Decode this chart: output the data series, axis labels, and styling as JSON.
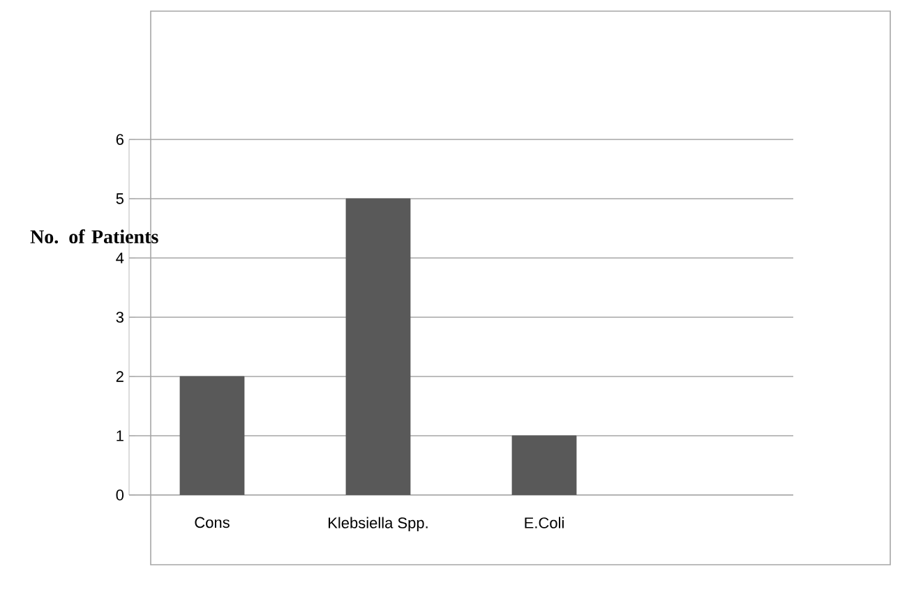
{
  "chart_data": {
    "type": "bar",
    "ylabel": "No. of Patients",
    "categories": [
      "Cons",
      "Klebsiella Spp.",
      "E.Coli",
      null
    ],
    "values": [
      2,
      5,
      1,
      null
    ],
    "color": "#595959",
    "ylim": [
      0,
      6
    ],
    "yticks": [
      0,
      1,
      2,
      3,
      4,
      5,
      6
    ],
    "grid": "y"
  }
}
